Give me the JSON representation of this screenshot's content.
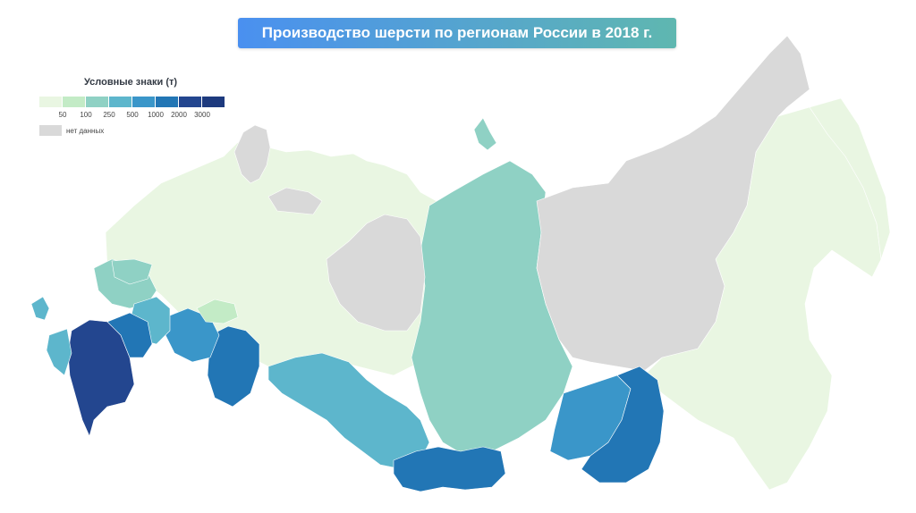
{
  "title": "Производство шерсти по регионам России в 2018 г.",
  "legend": {
    "title": "Условные знаки (т)",
    "thresholds": [
      "50",
      "100",
      "250",
      "500",
      "1000",
      "2000",
      "3000"
    ],
    "no_data_label": "нет данных"
  },
  "colors": {
    "banner_start": "#4a90f0",
    "banner_end": "#5fb7b0",
    "classes": [
      "#e9f6e2",
      "#c3ebc6",
      "#8fd1c4",
      "#5db6cc",
      "#3a96c9",
      "#2276b5",
      "#23468f",
      "#1d3a7e"
    ],
    "no_data": "#d9d9d9"
  },
  "map_classes": {
    "no_data_regions": [
      "north-east",
      "yakutia-west",
      "arctic-islands",
      "north-west-islands"
    ],
    "highest_class_regions": [
      "south-west-caucasus"
    ],
    "class_2000_3000_regions": [
      "volga-south",
      "orenburg",
      "zabaikalye",
      "altai-tyva"
    ]
  }
}
